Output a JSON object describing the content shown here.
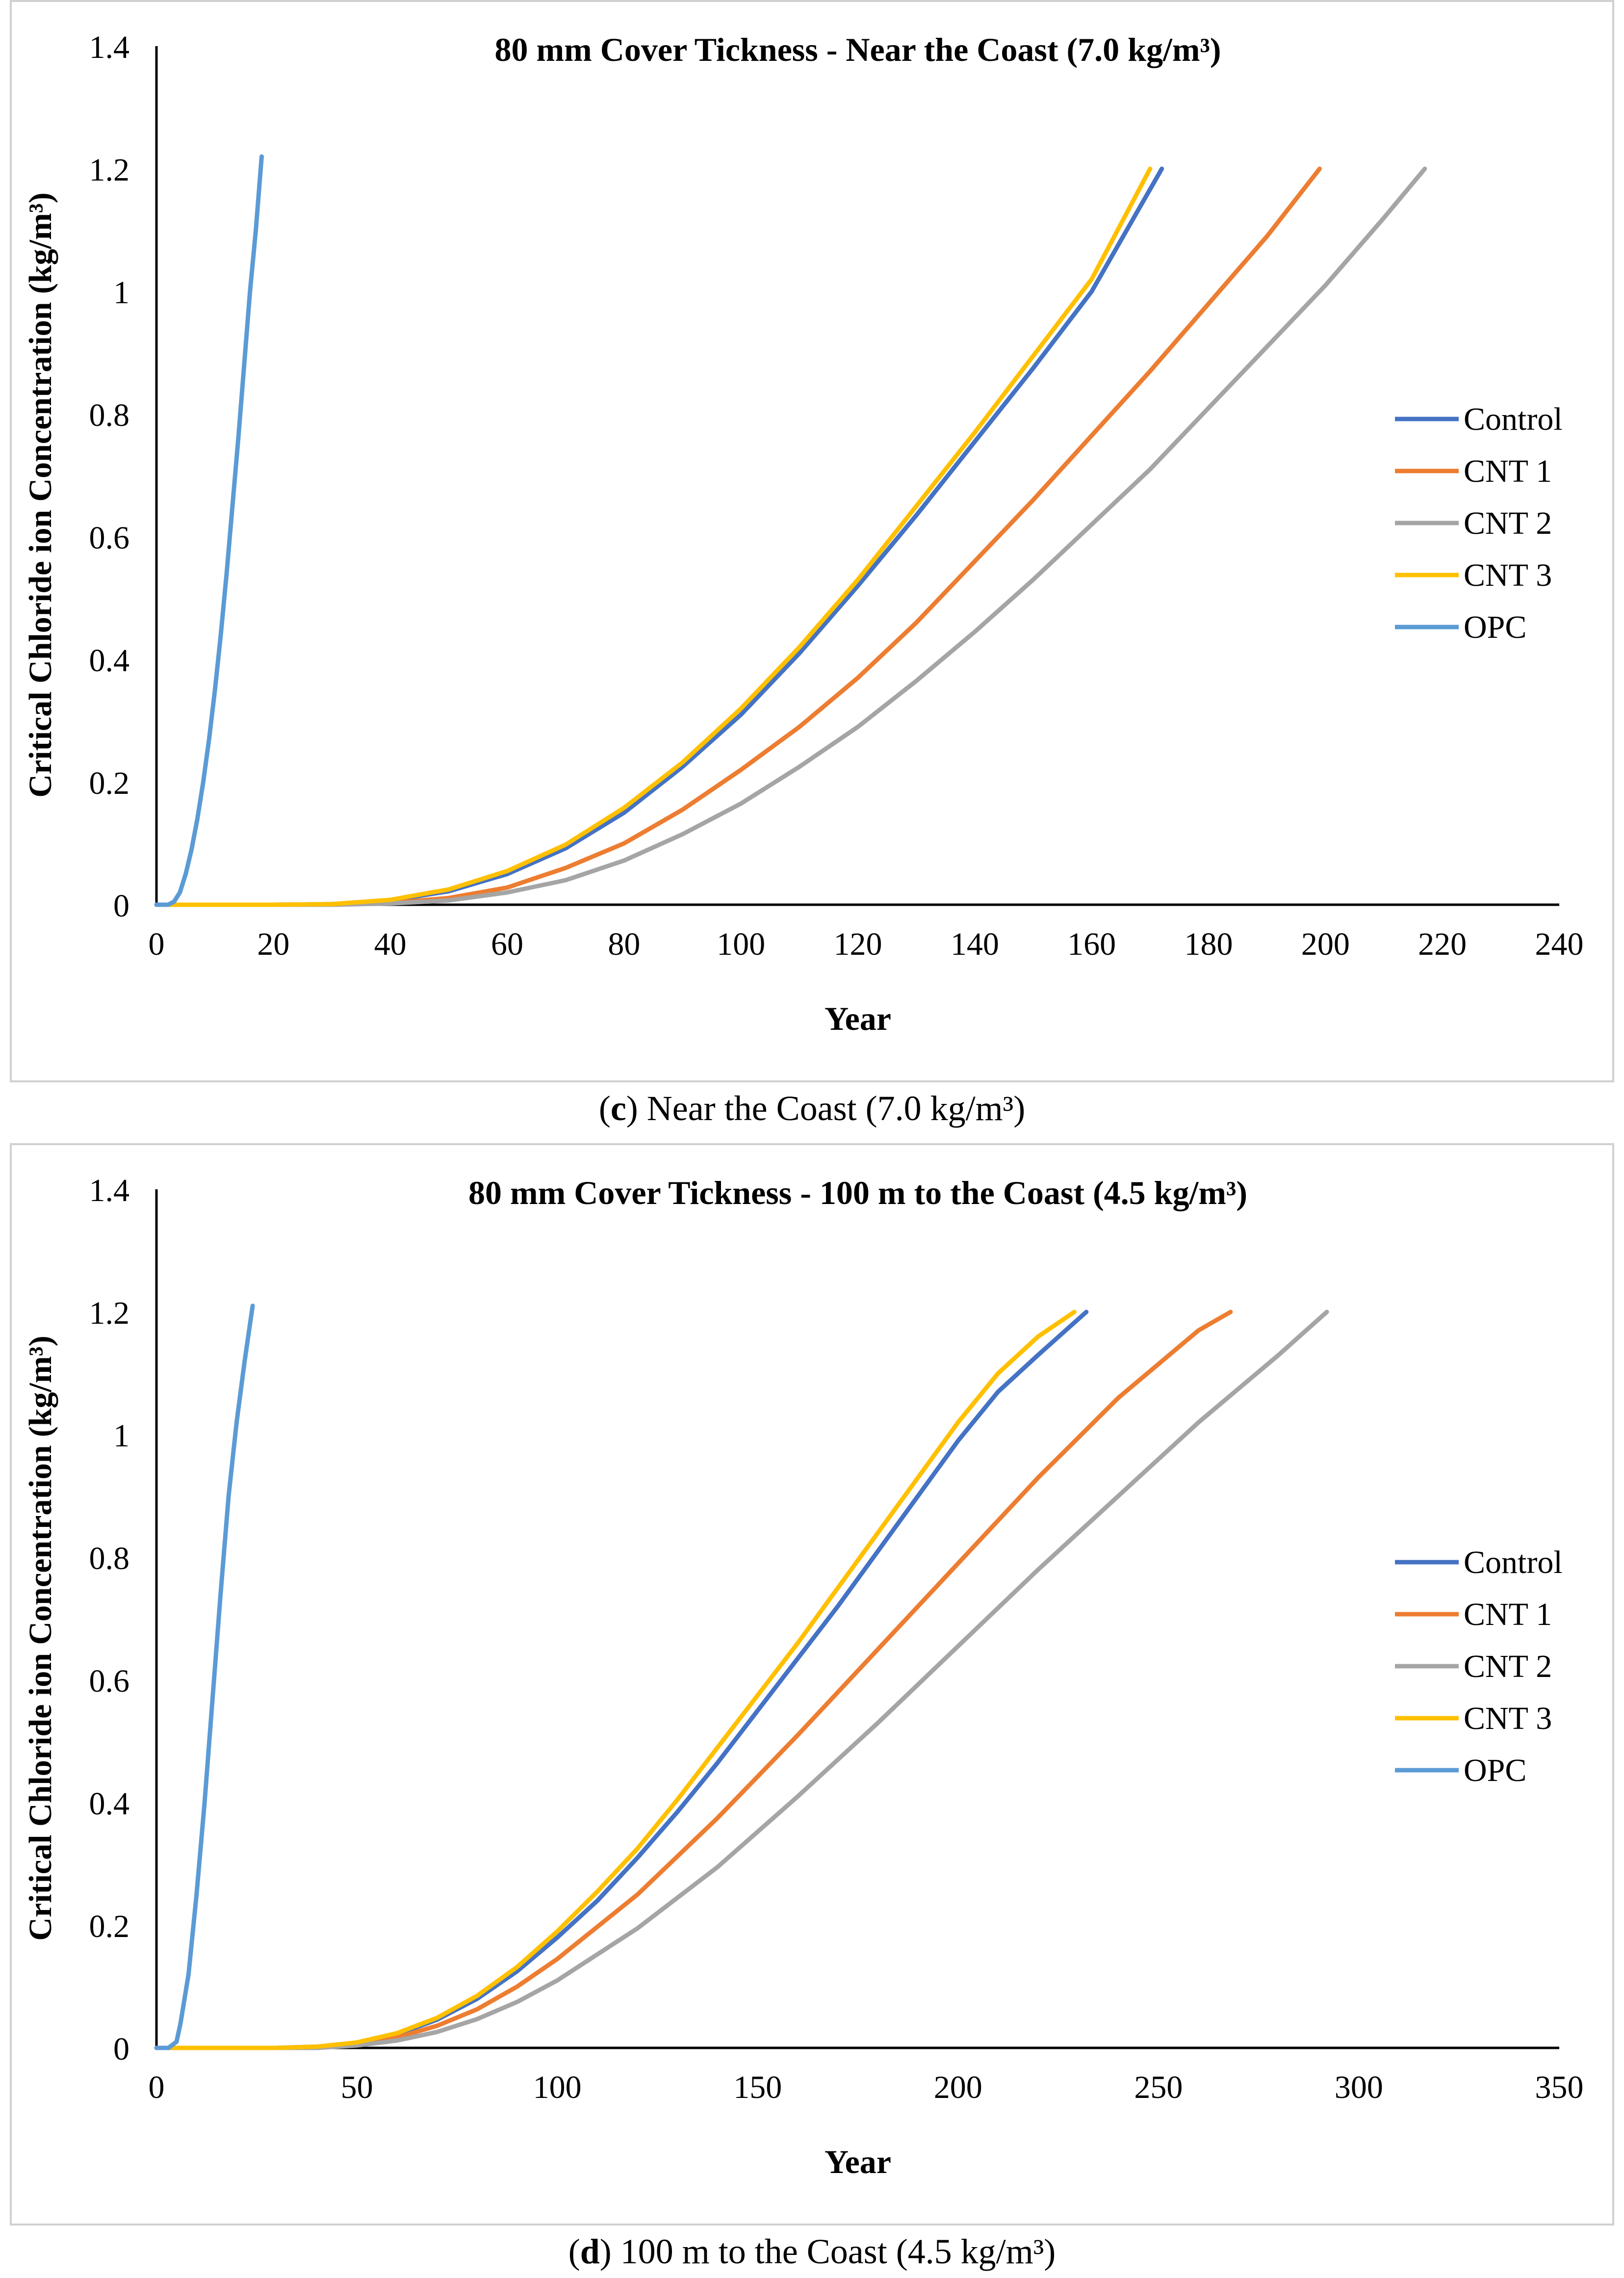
{
  "captions": [
    {
      "letter": "c",
      "open": "(",
      "close": ")",
      "text": " Near the Coast (7.0 kg/m³)"
    },
    {
      "letter": "d",
      "open": "(",
      "close": ")",
      "text": " 100 m to the Coast (4.5 kg/m³)"
    }
  ],
  "colors": {
    "Control": "#4472C4",
    "CNT 1": "#ED7D31",
    "CNT 2": "#A5A5A5",
    "CNT 3": "#FFC000",
    "OPC": "#5B9BD5"
  },
  "chart_data": [
    {
      "type": "line",
      "title": "80 mm Cover Tickness - Near the Coast (7.0 kg/m³)",
      "xlabel": "Year",
      "ylabel": "Critical Chloride ion Concentration (kg/m³)",
      "xlim": [
        0,
        240
      ],
      "ylim": [
        0,
        1.4
      ],
      "xticks": [
        0,
        20,
        40,
        60,
        80,
        100,
        120,
        140,
        160,
        180,
        200,
        220,
        240
      ],
      "yticks": [
        0,
        0.2,
        0.4,
        0.6,
        0.8,
        1,
        1.2,
        1.4
      ],
      "xtick_labels": [
        "0",
        "20",
        "40",
        "60",
        "80",
        "100",
        "120",
        "140",
        "160",
        "180",
        "200",
        "220",
        "240"
      ],
      "ytick_labels": [
        "0",
        "0.2",
        "0.4",
        "0.6",
        "0.8",
        "1",
        "1.2",
        "1.4"
      ],
      "legend_position": "right",
      "series": [
        {
          "name": "Control",
          "x": [
            0,
            20,
            30,
            40,
            50,
            60,
            70,
            80,
            90,
            100,
            110,
            120,
            130,
            140,
            150,
            160,
            172
          ],
          "y": [
            0,
            0,
            0.001,
            0.007,
            0.022,
            0.05,
            0.092,
            0.15,
            0.225,
            0.31,
            0.41,
            0.52,
            0.635,
            0.755,
            0.875,
            1.0,
            1.2
          ]
        },
        {
          "name": "CNT 1",
          "x": [
            0,
            30,
            40,
            50,
            60,
            70,
            80,
            90,
            100,
            110,
            120,
            130,
            140,
            150,
            160,
            170,
            180,
            190,
            199
          ],
          "y": [
            0,
            0,
            0.003,
            0.011,
            0.028,
            0.06,
            0.1,
            0.155,
            0.22,
            0.29,
            0.37,
            0.46,
            0.56,
            0.66,
            0.765,
            0.87,
            0.98,
            1.09,
            1.2
          ]
        },
        {
          "name": "CNT 2",
          "x": [
            0,
            30,
            40,
            50,
            60,
            70,
            80,
            90,
            100,
            110,
            120,
            130,
            140,
            150,
            160,
            170,
            180,
            190,
            200,
            210,
            217
          ],
          "y": [
            0,
            0,
            0.002,
            0.007,
            0.02,
            0.04,
            0.072,
            0.115,
            0.165,
            0.225,
            0.29,
            0.365,
            0.445,
            0.53,
            0.62,
            0.71,
            0.81,
            0.91,
            1.01,
            1.12,
            1.2
          ]
        },
        {
          "name": "CNT 3",
          "x": [
            0,
            20,
            30,
            40,
            50,
            60,
            70,
            80,
            90,
            100,
            110,
            120,
            130,
            140,
            150,
            160,
            170
          ],
          "y": [
            0,
            0,
            0.001,
            0.008,
            0.025,
            0.055,
            0.098,
            0.158,
            0.232,
            0.32,
            0.42,
            0.53,
            0.65,
            0.77,
            0.895,
            1.02,
            1.2
          ]
        },
        {
          "name": "OPC",
          "x": [
            0,
            2,
            3,
            4,
            5,
            6,
            7,
            8,
            9,
            10,
            11,
            12,
            13,
            14,
            15,
            16,
            17,
            18
          ],
          "y": [
            0,
            0,
            0.005,
            0.02,
            0.05,
            0.09,
            0.14,
            0.2,
            0.27,
            0.35,
            0.44,
            0.54,
            0.65,
            0.76,
            0.88,
            1.0,
            1.1,
            1.22
          ]
        }
      ]
    },
    {
      "type": "line",
      "title": "80 mm Cover Tickness - 100 m to the Coast (4.5 kg/m³)",
      "xlabel": "Year",
      "ylabel": "Critical Chloride ion Concentration (kg/m³)",
      "xlim": [
        0,
        350
      ],
      "ylim": [
        0,
        1.4
      ],
      "xticks": [
        0,
        50,
        100,
        150,
        200,
        250,
        300,
        350
      ],
      "yticks": [
        0,
        0.2,
        0.4,
        0.6,
        0.8,
        1,
        1.2,
        1.4
      ],
      "xtick_labels": [
        "0",
        "50",
        "100",
        "150",
        "200",
        "250",
        "300",
        "350"
      ],
      "ytick_labels": [
        "0",
        "0.2",
        "0.4",
        "0.6",
        "0.8",
        "1",
        "1.2",
        "1.4"
      ],
      "legend_position": "right",
      "series": [
        {
          "name": "Control",
          "x": [
            0,
            30,
            40,
            50,
            60,
            70,
            80,
            90,
            100,
            110,
            120,
            130,
            140,
            150,
            160,
            170,
            180,
            190,
            200,
            210,
            220,
            232
          ],
          "y": [
            0,
            0,
            0.002,
            0.008,
            0.022,
            0.046,
            0.08,
            0.125,
            0.18,
            0.24,
            0.31,
            0.385,
            0.465,
            0.55,
            0.635,
            0.72,
            0.81,
            0.9,
            0.99,
            1.07,
            1.13,
            1.2
          ]
        },
        {
          "name": "CNT 1",
          "x": [
            0,
            40,
            50,
            60,
            70,
            80,
            90,
            100,
            120,
            140,
            160,
            180,
            200,
            220,
            240,
            260,
            268
          ],
          "y": [
            0,
            0,
            0.006,
            0.017,
            0.036,
            0.063,
            0.1,
            0.145,
            0.25,
            0.375,
            0.51,
            0.65,
            0.79,
            0.93,
            1.06,
            1.17,
            1.2
          ]
        },
        {
          "name": "CNT 2",
          "x": [
            0,
            40,
            50,
            60,
            70,
            80,
            90,
            100,
            120,
            140,
            160,
            180,
            200,
            220,
            240,
            260,
            280,
            292
          ],
          "y": [
            0,
            0,
            0.004,
            0.012,
            0.026,
            0.047,
            0.075,
            0.11,
            0.195,
            0.295,
            0.41,
            0.53,
            0.655,
            0.78,
            0.9,
            1.02,
            1.13,
            1.2
          ]
        },
        {
          "name": "CNT 3",
          "x": [
            0,
            30,
            40,
            50,
            60,
            70,
            80,
            90,
            100,
            110,
            120,
            130,
            140,
            150,
            160,
            170,
            180,
            190,
            200,
            210,
            220,
            229
          ],
          "y": [
            0,
            0,
            0.002,
            0.009,
            0.024,
            0.049,
            0.085,
            0.132,
            0.19,
            0.255,
            0.325,
            0.405,
            0.49,
            0.575,
            0.66,
            0.75,
            0.84,
            0.93,
            1.02,
            1.1,
            1.16,
            1.2
          ]
        },
        {
          "name": "OPC",
          "x": [
            0,
            3,
            5,
            6,
            8,
            10,
            12,
            14,
            16,
            18,
            20,
            22,
            24
          ],
          "y": [
            0,
            0,
            0.01,
            0.04,
            0.12,
            0.25,
            0.4,
            0.57,
            0.74,
            0.9,
            1.02,
            1.12,
            1.21
          ]
        }
      ]
    }
  ]
}
